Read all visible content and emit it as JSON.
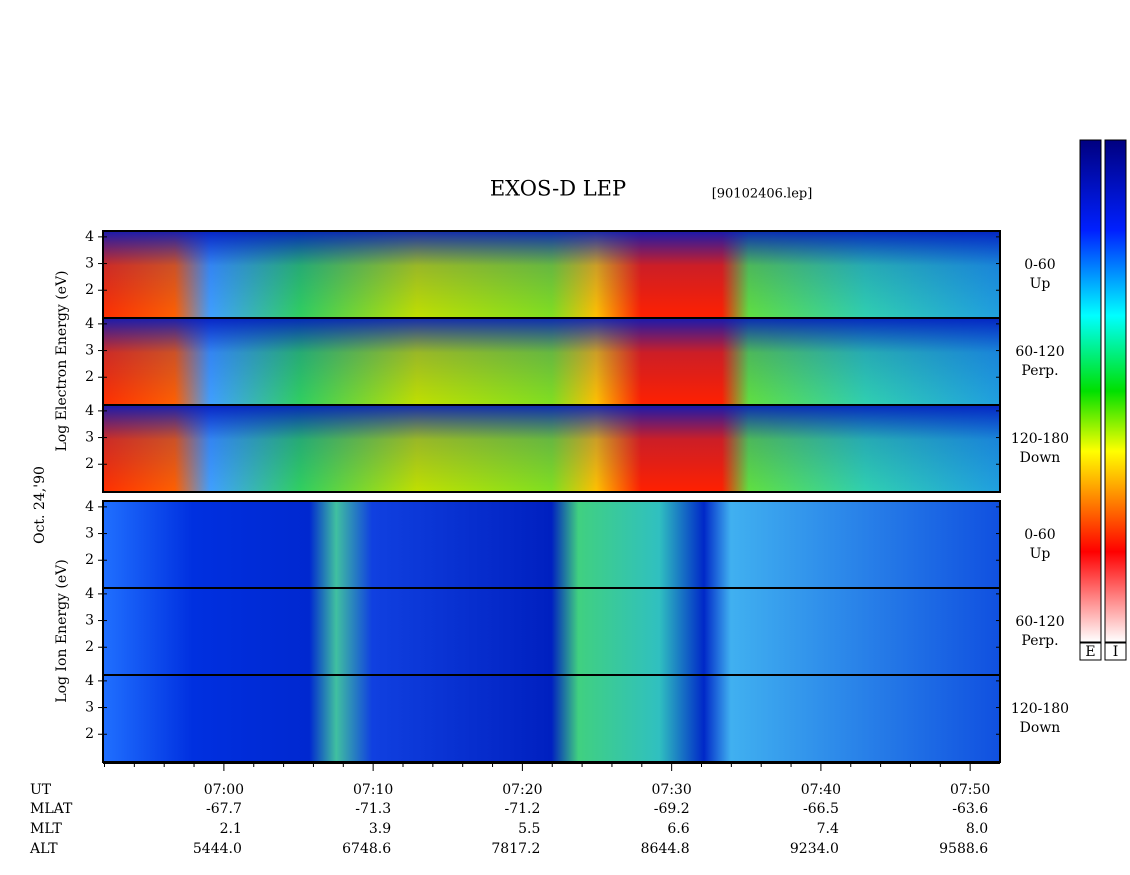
{
  "chart_data": {
    "type": "spectrogram",
    "title": "EXOS-D LEP",
    "filename": "[90102406.lep]",
    "date_label": "Oct. 24,'90",
    "y_labels": [
      "Log Electron Energy (eV)",
      "Log Ion Energy (eV)"
    ],
    "panels": [
      {
        "angle": "0-60",
        "direction": "Up"
      },
      {
        "angle": "60-120",
        "direction": "Perp."
      },
      {
        "angle": "120-180",
        "direction": "Down"
      },
      {
        "angle": "0-60",
        "direction": "Up"
      },
      {
        "angle": "60-120",
        "direction": "Perp."
      },
      {
        "angle": "120-180",
        "direction": "Down"
      }
    ],
    "ylim": [
      0.96,
      4.22
    ],
    "yticks": [
      2,
      3,
      4
    ],
    "xlim": [
      411.9,
      472
    ],
    "xticks": [
      {
        "value": 420,
        "label": "07:00"
      },
      {
        "value": 430,
        "label": "07:10"
      },
      {
        "value": 440,
        "label": "07:20"
      },
      {
        "value": 450,
        "label": "07:30"
      },
      {
        "value": 460,
        "label": "07:40"
      },
      {
        "value": 470,
        "label": "07:50"
      }
    ],
    "xminor_ticks": [
      412,
      414,
      416,
      418,
      422,
      424,
      426,
      428,
      432,
      434,
      436,
      438,
      442,
      444,
      446,
      448,
      452,
      454,
      456,
      458,
      462,
      464,
      466,
      468
    ],
    "x_row_label": "UT",
    "ephemeris": [
      {
        "label": "MLAT",
        "values": [
          "-67.7",
          "-71.3",
          "-71.2",
          "-69.2",
          "-66.5",
          "-63.6"
        ]
      },
      {
        "label": "MLT",
        "values": [
          "2.1",
          "3.9",
          "5.5",
          "6.6",
          "7.4",
          "8.0"
        ]
      },
      {
        "label": "ALT",
        "values": [
          "5444.0",
          "6748.6",
          "7817.2",
          "8644.8",
          "9234.0",
          "9588.6"
        ]
      }
    ],
    "colorbar_labels": [
      "E",
      "I"
    ]
  }
}
